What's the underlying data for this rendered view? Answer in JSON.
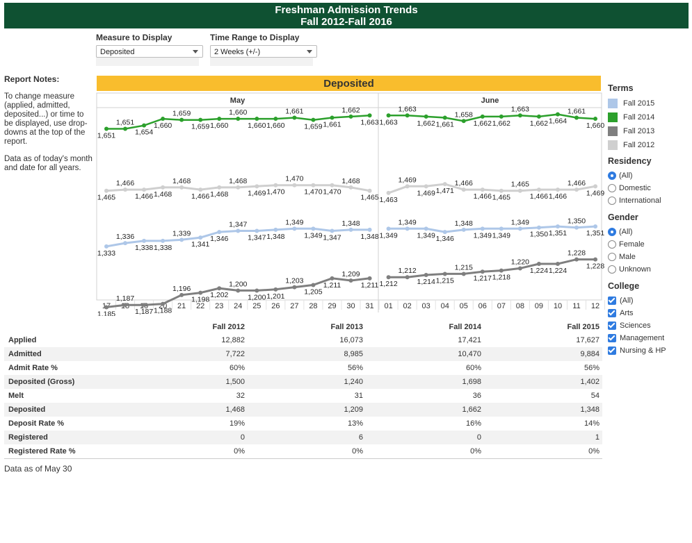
{
  "banner": {
    "line1": "Freshman Admission Trends",
    "line2": "Fall 2012-Fall 2016"
  },
  "filters": [
    {
      "label": "Measure to Display",
      "value": "Deposited"
    },
    {
      "label": "Time Range to Display",
      "value": "2 Weeks (+/-)"
    }
  ],
  "notes": {
    "heading": "Report Notes:",
    "p1": "To change measure (applied, admitted, deposited...) or time to be displayed, use drop-downs at the top of the report.",
    "p2": "Data as of today's month and date for all years."
  },
  "measure_header": "Deposited",
  "chart_data": {
    "type": "line",
    "panels": [
      "May",
      "June"
    ],
    "categories": [
      "17",
      "18",
      "19",
      "20",
      "21",
      "22",
      "23",
      "24",
      "25",
      "26",
      "27",
      "28",
      "29",
      "30",
      "31",
      "01",
      "02",
      "03",
      "04",
      "05",
      "06",
      "07",
      "08",
      "09",
      "10",
      "11",
      "12"
    ],
    "series": [
      {
        "name": "Fall 2014",
        "color": "#2ca02c",
        "values": [
          1651,
          1651,
          1654,
          1660,
          1659,
          1659,
          1660,
          1660,
          1660,
          1660,
          1661,
          1659,
          1661,
          1662,
          1663,
          1663,
          1663,
          1662,
          1661,
          1658,
          1662,
          1662,
          1663,
          1662,
          1664,
          1661,
          1660
        ]
      },
      {
        "name": "Fall 2012",
        "color": "#cfcfcf",
        "values": [
          1465,
          1466,
          1466,
          1468,
          1468,
          1466,
          1468,
          1468,
          1469,
          1470,
          1470,
          1470,
          1470,
          1468,
          1465,
          1463,
          1469,
          1469,
          1471,
          1466,
          1466,
          1465,
          1465,
          1466,
          1466,
          1466,
          1469
        ]
      },
      {
        "name": "Fall 2015",
        "color": "#aec7e8",
        "values": [
          1333,
          1336,
          1338,
          1338,
          1339,
          1341,
          1346,
          1347,
          1347,
          1348,
          1349,
          1349,
          1347,
          1348,
          1348,
          1349,
          1349,
          1349,
          1346,
          1348,
          1349,
          1349,
          1349,
          1350,
          1351,
          1350,
          1351
        ]
      },
      {
        "name": "Fall 2013",
        "color": "#7f7f7f",
        "values": [
          1185,
          1187,
          1187,
          1188,
          1196,
          1198,
          1202,
          1200,
          1200,
          1201,
          1203,
          1205,
          1211,
          1209,
          1211,
          1212,
          1212,
          1214,
          1215,
          1215,
          1217,
          1218,
          1220,
          1224,
          1224,
          1228,
          1228
        ]
      }
    ]
  },
  "table": {
    "columns": [
      "Fall 2012",
      "Fall 2013",
      "Fall 2014",
      "Fall 2015"
    ],
    "rows": [
      {
        "label": "Applied",
        "values": [
          "12,882",
          "16,073",
          "17,421",
          "17,627"
        ]
      },
      {
        "label": "Admitted",
        "values": [
          "7,722",
          "8,985",
          "10,470",
          "9,884"
        ]
      },
      {
        "label": "Admit Rate %",
        "values": [
          "60%",
          "56%",
          "60%",
          "56%"
        ]
      },
      {
        "label": "Deposited (Gross)",
        "values": [
          "1,500",
          "1,240",
          "1,698",
          "1,402"
        ]
      },
      {
        "label": "Melt",
        "values": [
          "32",
          "31",
          "36",
          "54"
        ]
      },
      {
        "label": "Deposited",
        "values": [
          "1,468",
          "1,209",
          "1,662",
          "1,348"
        ]
      },
      {
        "label": "Deposit Rate %",
        "values": [
          "19%",
          "13%",
          "16%",
          "14%"
        ]
      },
      {
        "label": "Registered",
        "values": [
          "0",
          "6",
          "0",
          "1"
        ]
      },
      {
        "label": "Registered Rate %",
        "values": [
          "0%",
          "0%",
          "0%",
          "0%"
        ]
      }
    ]
  },
  "footnote": "Data as of May 30",
  "terms": {
    "heading": "Terms",
    "items": [
      {
        "label": "Fall 2015",
        "color": "#aec7e8"
      },
      {
        "label": "Fall 2014",
        "color": "#2ca02c"
      },
      {
        "label": "Fall 2013",
        "color": "#7f7f7f"
      },
      {
        "label": "Fall 2012",
        "color": "#cfcfcf"
      }
    ]
  },
  "residency": {
    "heading": "Residency",
    "options": [
      "(All)",
      "Domestic",
      "International"
    ],
    "selected": 0
  },
  "gender": {
    "heading": "Gender",
    "options": [
      "(All)",
      "Female",
      "Male",
      "Unknown"
    ],
    "selected": 0
  },
  "college": {
    "heading": "College",
    "options": [
      "(All)",
      "Arts",
      "Sciences",
      "Management",
      "Nursing & HP"
    ]
  }
}
